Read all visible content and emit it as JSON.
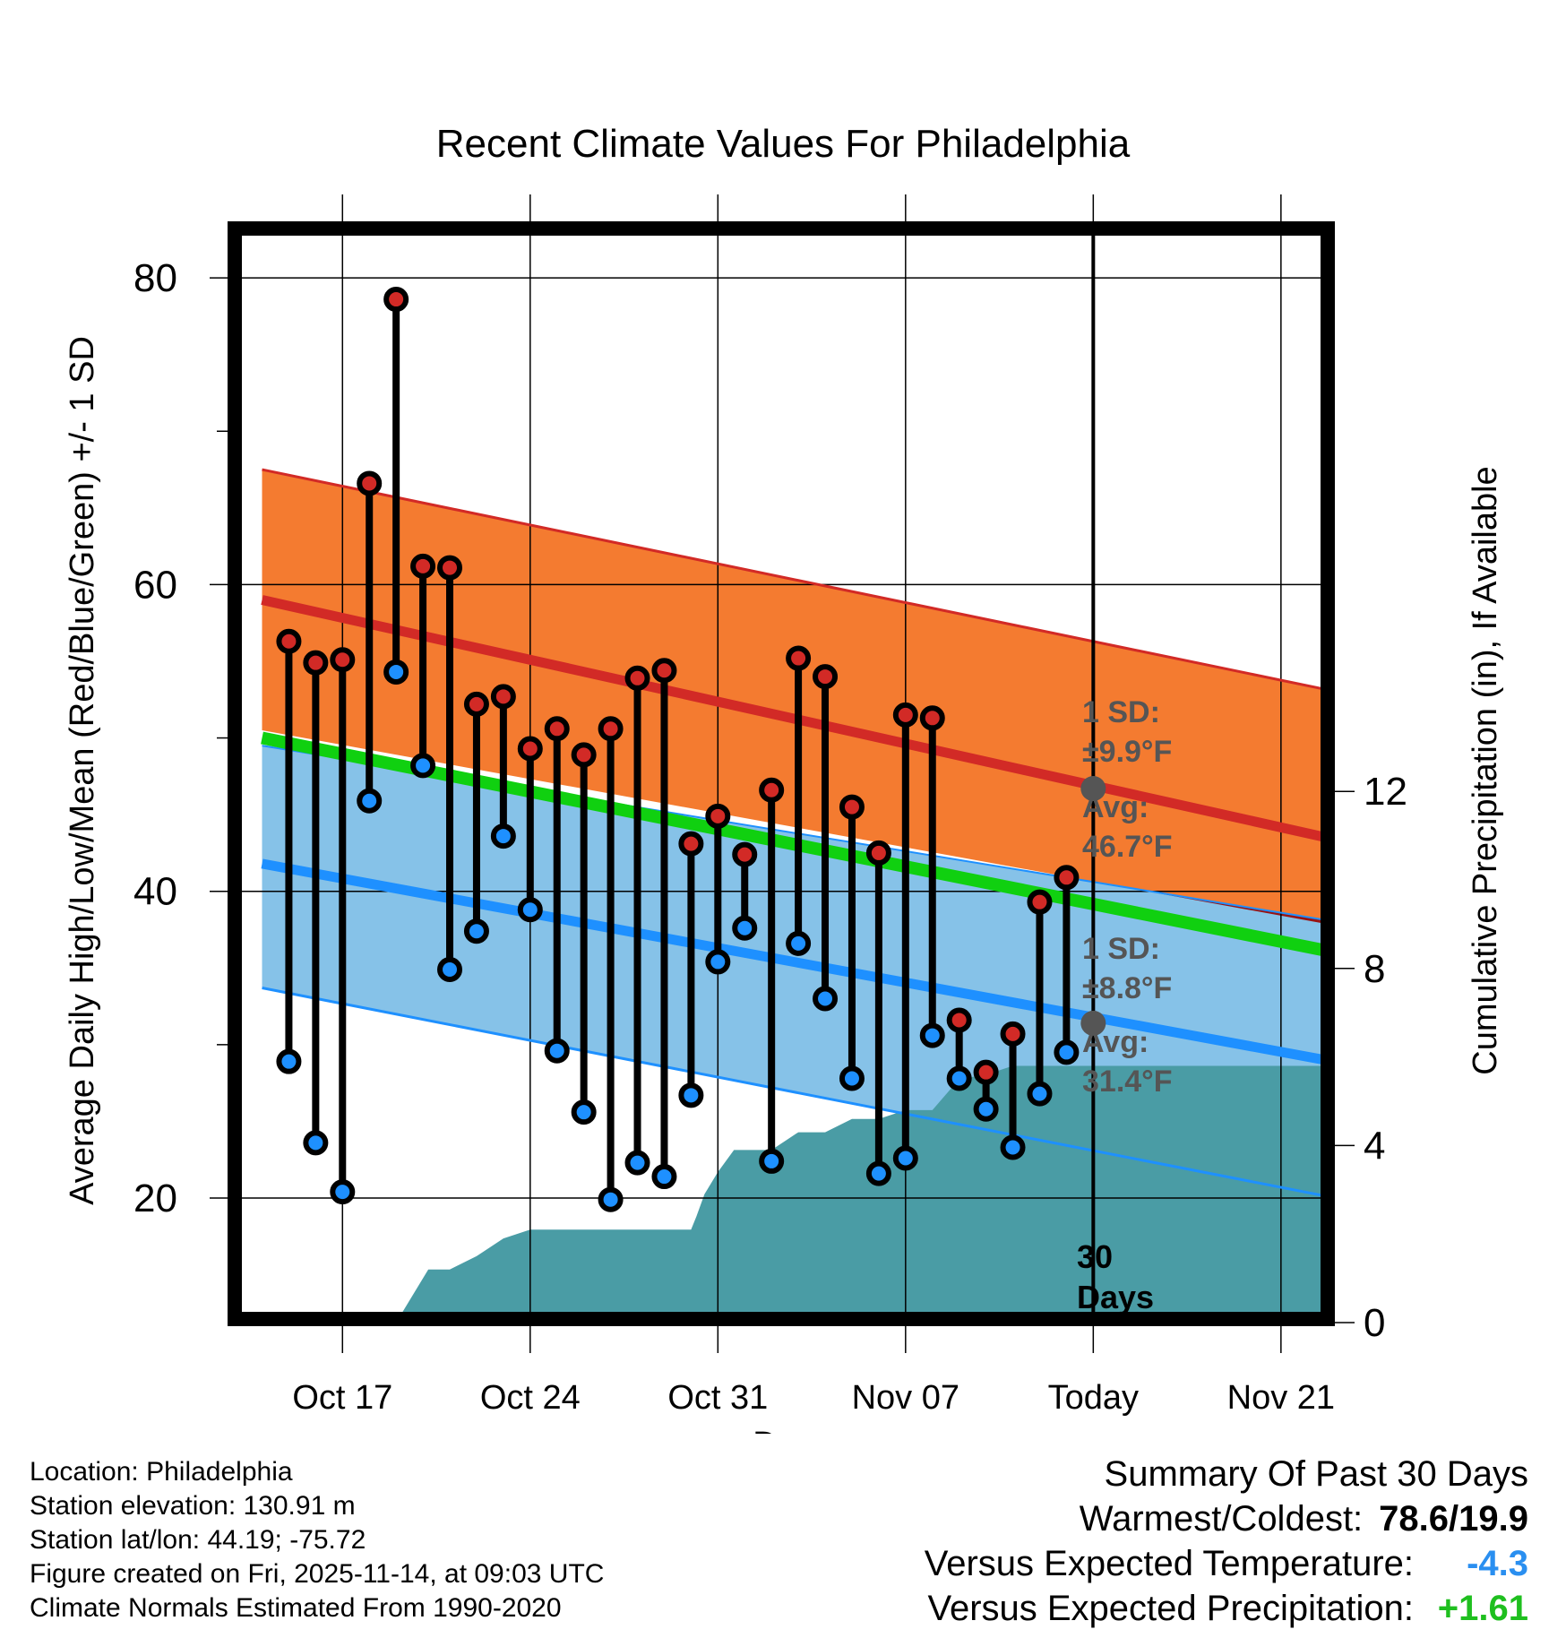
{
  "chart_data": {
    "type": "line",
    "title": "Recent Climate Values For Philadelphia",
    "xlabel": "Day",
    "ylabel": "Average Daily High/Low/Mean (Red/Blue/Green) +/- 1 SD",
    "y2label": "Cumulative Precipitation (in), If Available",
    "x_range_days": [
      -17,
      42
    ],
    "ylim": [
      12.5,
      83.5
    ],
    "y2lim": [
      0,
      24
    ],
    "x_ticks": [
      {
        "day": 3,
        "label": "Oct 17"
      },
      {
        "day": 10,
        "label": "Oct 24"
      },
      {
        "day": 17,
        "label": "Oct 31"
      },
      {
        "day": 24,
        "label": "Nov 07"
      },
      {
        "day": 31,
        "label": "Today"
      },
      {
        "day": 38,
        "label": "Nov 21"
      }
    ],
    "y_ticks": [
      20,
      40,
      60,
      80
    ],
    "y_minor_ticks": [
      30,
      50,
      70
    ],
    "y2_ticks": [
      0,
      4,
      8,
      12
    ],
    "grid": true,
    "today_day": 31,
    "normals": {
      "days": [
        0,
        41.5
      ],
      "high_avg": [
        59.0,
        42.8
      ],
      "high_upper": [
        67.5,
        52.5
      ],
      "high_lower": [
        50.5,
        37.3
      ],
      "low_avg": [
        41.8,
        28.4
      ],
      "low_upper": [
        49.5,
        37.6
      ],
      "low_lower": [
        33.7,
        19.5
      ],
      "mean_avg": [
        50.0,
        35.5
      ]
    },
    "highs": [
      56.3,
      54.9,
      55.1,
      66.6,
      78.6,
      61.2,
      61.1,
      52.2,
      52.7,
      49.3,
      50.6,
      48.9,
      50.6,
      53.9,
      54.4,
      43.1,
      44.9,
      42.4,
      46.6,
      55.2,
      54.0,
      45.5,
      42.5,
      51.5,
      51.3,
      31.6,
      28.2,
      30.7,
      39.3,
      40.9
    ],
    "lows": [
      28.9,
      23.6,
      20.4,
      45.9,
      54.3,
      48.2,
      34.9,
      37.4,
      43.6,
      38.8,
      29.6,
      25.6,
      19.9,
      22.3,
      21.4,
      26.7,
      35.4,
      37.6,
      22.4,
      36.6,
      33.0,
      27.8,
      21.6,
      22.6,
      30.6,
      27.8,
      25.8,
      23.3,
      26.8,
      29.5
    ],
    "precip_cumulative": {
      "days": [
        5,
        5.6,
        6.2,
        7,
        8,
        9,
        10,
        11,
        12,
        14,
        15,
        16,
        16.2,
        16.5,
        17,
        17.6,
        19,
        20,
        21,
        22,
        23,
        24,
        25,
        26,
        27,
        28,
        29,
        30,
        31,
        41.5
      ],
      "values": [
        0,
        0.6,
        1.2,
        1.2,
        1.5,
        1.9,
        2.1,
        2.1,
        2.1,
        2.1,
        2.1,
        2.1,
        2.4,
        2.9,
        3.4,
        3.9,
        3.9,
        4.3,
        4.3,
        4.6,
        4.6,
        4.8,
        4.8,
        5.5,
        5.6,
        5.8,
        5.8,
        5.8,
        5.8,
        5.8
      ]
    },
    "annotations": [
      {
        "line1": "1 SD:",
        "line2": "±9.9°F"
      },
      {
        "line1": "Avg:",
        "line2": "46.7°F"
      },
      {
        "line1": "1 SD:",
        "line2": "±8.8°F"
      },
      {
        "line1": "Avg:",
        "line2": "31.4°F"
      },
      {
        "line1": "30",
        "line2": "Days"
      }
    ],
    "today_high_avg": 46.7,
    "today_low_avg": 31.4,
    "colors": {
      "high_band": "#f47b30",
      "high_line": "#d22a26",
      "low_band": "#86c2e8",
      "low_line": "#1e90ff",
      "mean_line": "#10d010",
      "overlap": "#981313",
      "precip": "#4a9ca5",
      "stem": "#000000",
      "avg_marker": "#555555"
    }
  },
  "info": {
    "location": "Location: Philadelphia",
    "elevation": "Station elevation: 130.91 m",
    "latlon": "Station lat/lon: 44.19; -75.72",
    "created": "Figure created on Fri, 2025-11-14, at 09:03 UTC",
    "normals": "Climate Normals Estimated From 1990-2020"
  },
  "summary": {
    "title": "Summary Of Past 30 Days",
    "warm_cold_label": "Warmest/Coldest:",
    "warm_cold_value": "78.6/19.9",
    "temp_label": "Versus Expected Temperature:",
    "temp_value": "-4.3",
    "temp_color": "#2a8ff0",
    "precip_label": "Versus Expected Precipitation:",
    "precip_value": "+1.61",
    "precip_color": "#1fbf1f"
  }
}
